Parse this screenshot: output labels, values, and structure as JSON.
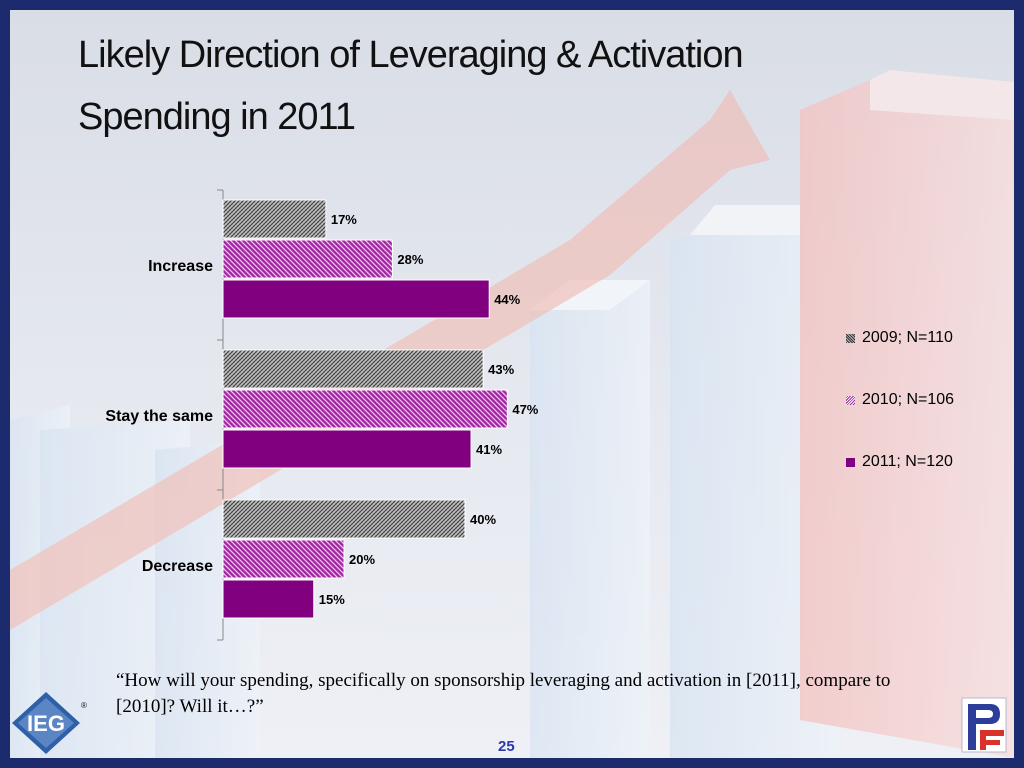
{
  "slide": {
    "title": "Likely Direction of Leveraging & Activation Spending in 2011",
    "footnote": "“How will your spending, specifically on sponsorship leveraging and activation in [2011], compare to [2010]?  Will it…?”",
    "page_number": "25",
    "ieg_logo_text": "IEG",
    "ieg_logo_registered": "®"
  },
  "chart_data": {
    "type": "bar",
    "orientation": "horizontal",
    "categories": [
      "Increase",
      "Stay the same",
      "Decrease"
    ],
    "series": [
      {
        "name": "2009; N=110",
        "values": [
          17,
          43,
          40
        ],
        "labels": [
          "17%",
          "43%",
          "40%"
        ],
        "color": "#606060",
        "pattern": "crosshatch-gray"
      },
      {
        "name": "2010; N=106",
        "values": [
          28,
          47,
          20
        ],
        "labels": [
          "28%",
          "47%",
          "20%"
        ],
        "color": "#a020a0",
        "pattern": "diagonal-purple"
      },
      {
        "name": "2011; N=120",
        "values": [
          44,
          41,
          15
        ],
        "labels": [
          "44%",
          "41%",
          "15%"
        ],
        "color": "#800080",
        "pattern": "solid"
      }
    ],
    "xlim": [
      0,
      50
    ],
    "legend_position": "right",
    "grid": false,
    "title": "",
    "xlabel": "",
    "ylabel": ""
  }
}
